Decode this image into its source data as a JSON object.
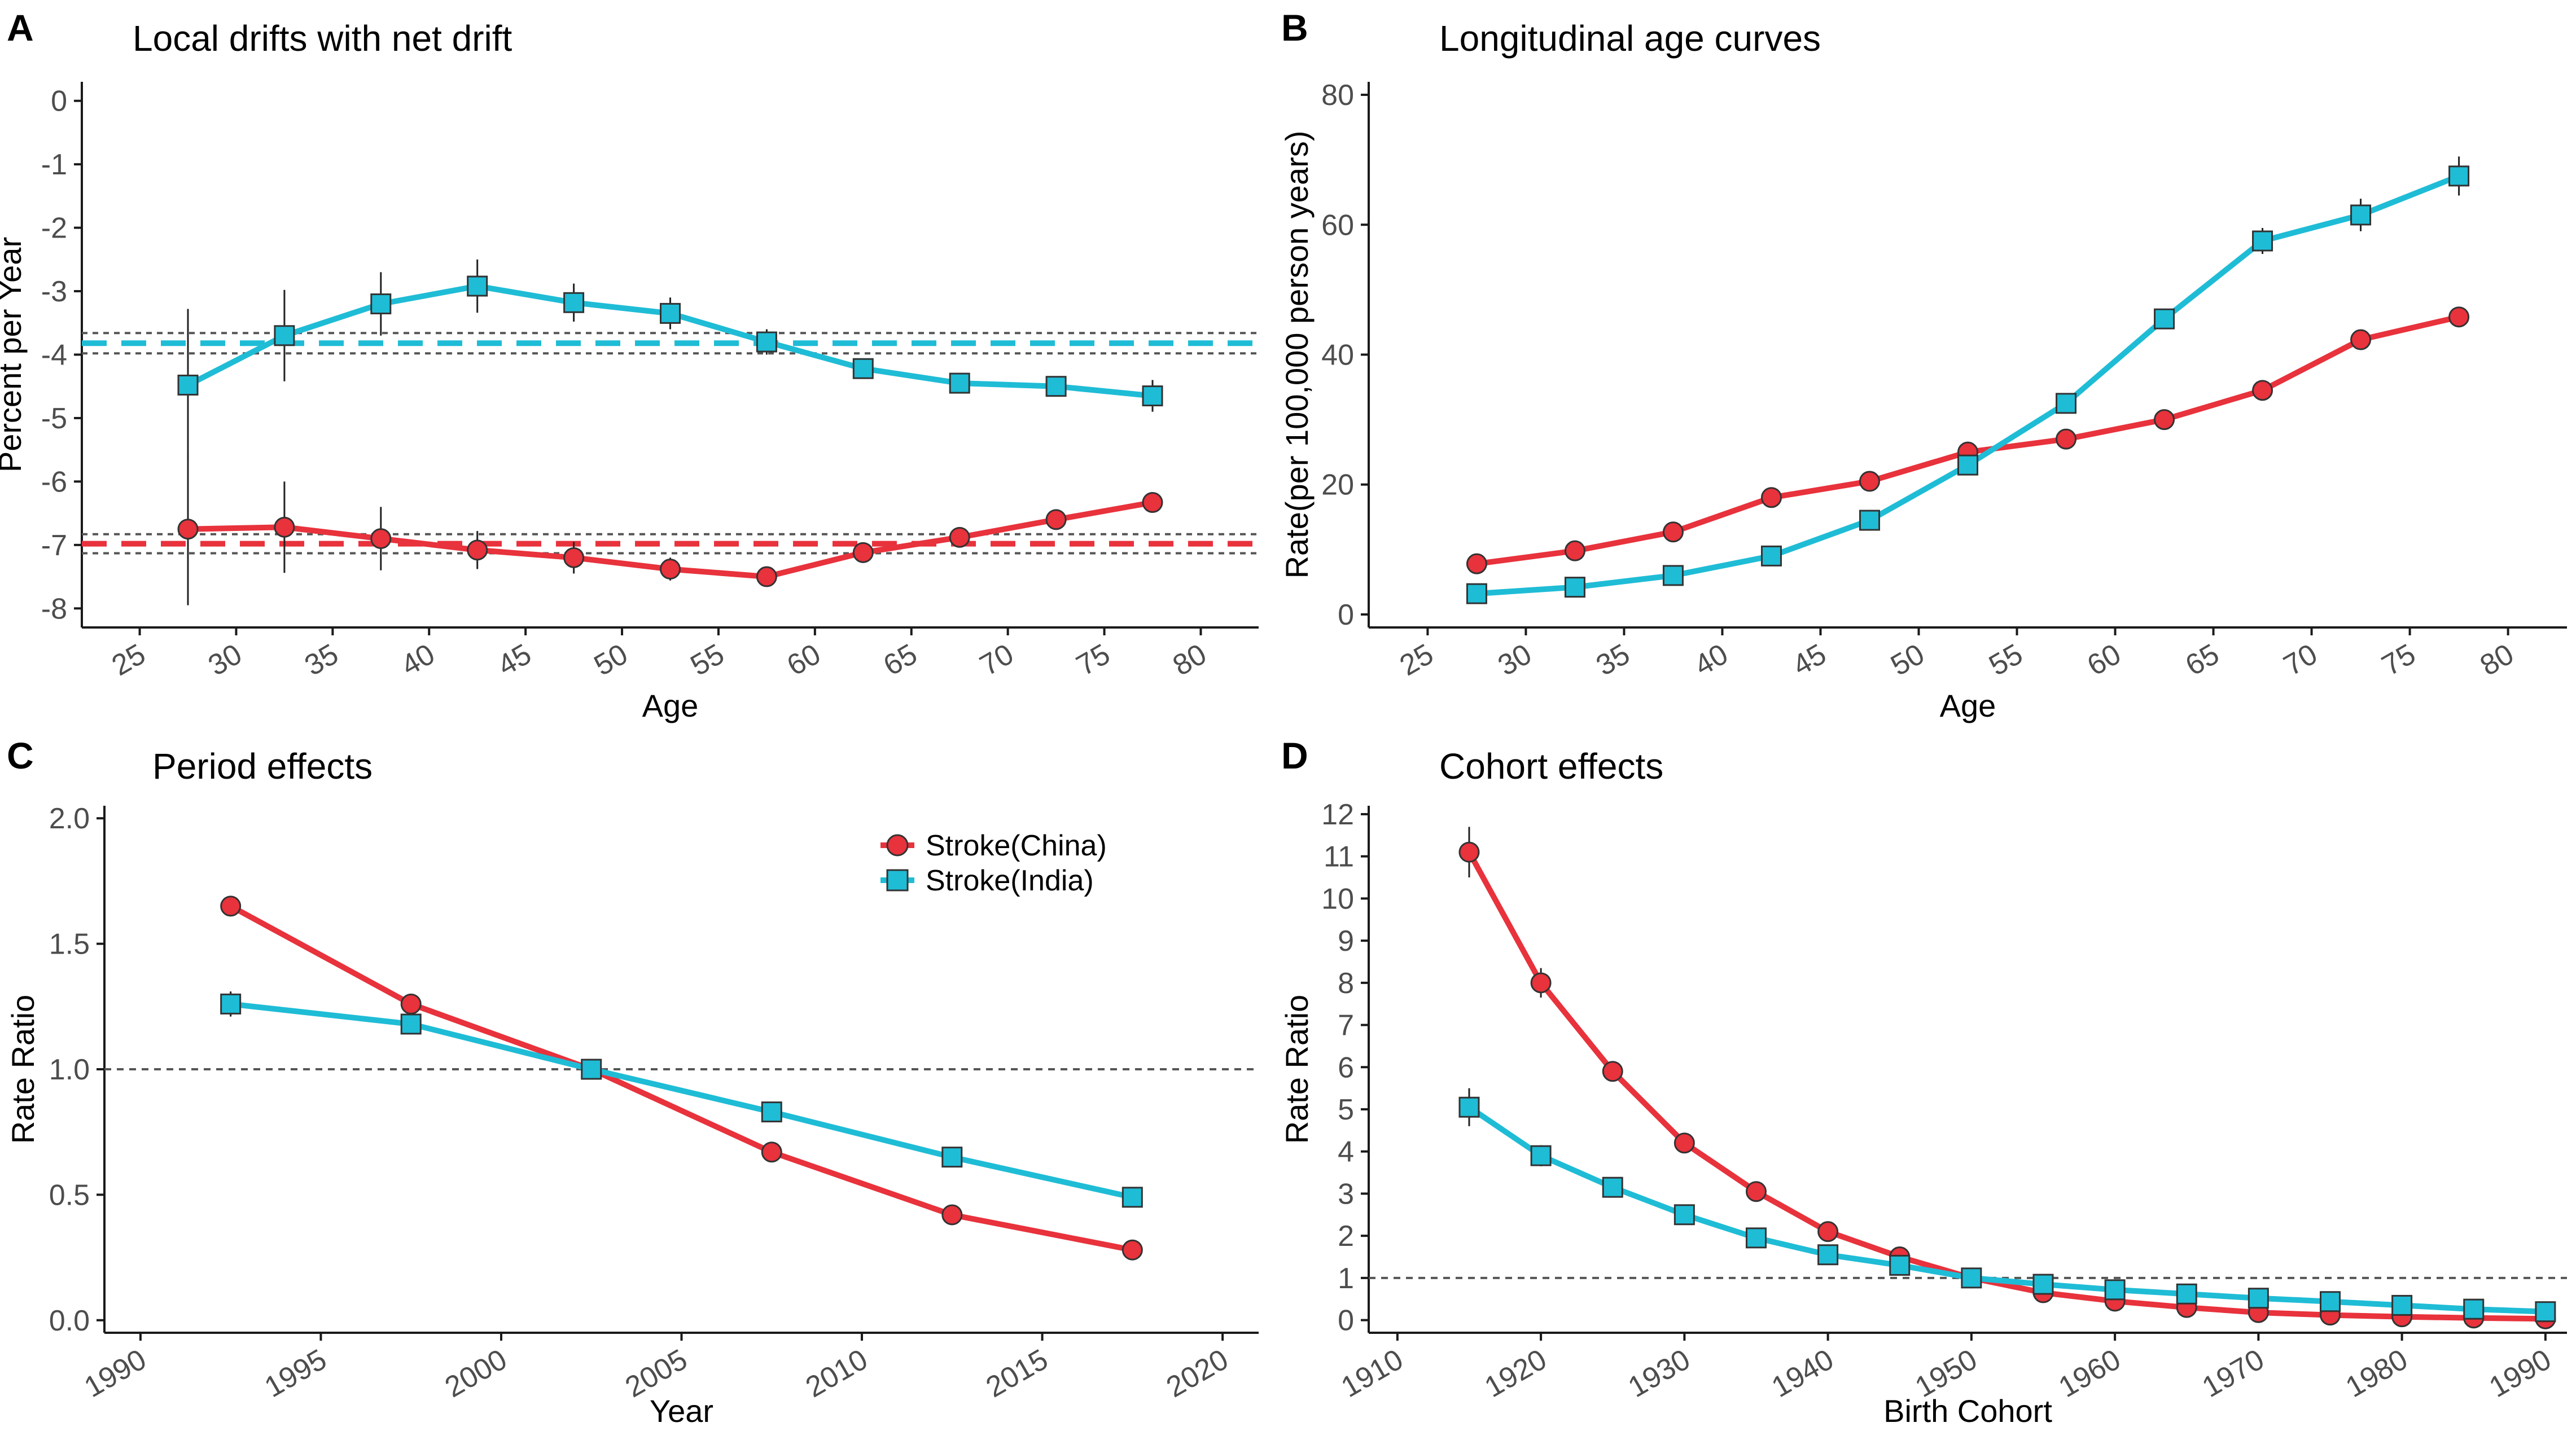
{
  "chart_data": [
    {
      "type": "line",
      "panel_label": "A",
      "title": "Local drifts with net drift",
      "xlabel": "Age",
      "ylabel": "Percent per Year",
      "xlim": [
        22,
        83
      ],
      "ylim": [
        -8.3,
        0.3
      ],
      "xticks": [
        25,
        30,
        35,
        40,
        45,
        50,
        55,
        60,
        65,
        70,
        75,
        80
      ],
      "yticks": [
        0,
        -1,
        -2,
        -3,
        -4,
        -5,
        -6,
        -7,
        -8
      ],
      "x": [
        27.5,
        32.5,
        37.5,
        42.5,
        47.5,
        52.5,
        57.5,
        62.5,
        67.5,
        72.5,
        77.5
      ],
      "series": [
        {
          "name": "Stroke(China)",
          "color": "#e8323c",
          "marker": "circle",
          "values": [
            -6.75,
            -6.72,
            -6.9,
            -7.08,
            -7.2,
            -7.38,
            -7.5,
            -7.12,
            -6.88,
            -6.6,
            -6.33
          ],
          "error": [
            1.2,
            0.72,
            0.5,
            0.3,
            0.25,
            0.18,
            0.1,
            0.12,
            0.1,
            0.1,
            0.08
          ],
          "net_drift": -6.98,
          "net_drift_ci": [
            -7.13,
            -6.83
          ]
        },
        {
          "name": "Stroke(India)",
          "color": "#1fbcd6",
          "marker": "square",
          "values": [
            -4.48,
            -3.7,
            -3.2,
            -2.92,
            -3.18,
            -3.35,
            -3.8,
            -4.22,
            -4.45,
            -4.5,
            -4.65
          ],
          "error": [
            1.2,
            0.72,
            0.5,
            0.42,
            0.3,
            0.25,
            0.2,
            0.15,
            0.12,
            0.15,
            0.25
          ],
          "net_drift": -3.82,
          "net_drift_ci": [
            -3.98,
            -3.66
          ]
        }
      ]
    },
    {
      "type": "line",
      "panel_label": "B",
      "title": "Longitudinal age curves",
      "xlabel": "Age",
      "ylabel": "Rate(per 100,000 person years)",
      "xlim": [
        22,
        83
      ],
      "ylim": [
        -2,
        82
      ],
      "xticks": [
        25,
        30,
        35,
        40,
        45,
        50,
        55,
        60,
        65,
        70,
        75,
        80
      ],
      "yticks": [
        0,
        20,
        40,
        60,
        80
      ],
      "x": [
        27.5,
        32.5,
        37.5,
        42.5,
        47.5,
        52.5,
        57.5,
        62.5,
        67.5,
        72.5,
        77.5
      ],
      "series": [
        {
          "name": "Stroke(China)",
          "color": "#e8323c",
          "marker": "circle",
          "values": [
            7.8,
            9.8,
            12.7,
            18.0,
            20.5,
            25.0,
            27.0,
            30.0,
            34.5,
            42.3,
            45.8
          ],
          "error": [
            0.3,
            0.3,
            0.4,
            0.5,
            0.5,
            0.5,
            0.5,
            0.6,
            0.7,
            1.2,
            1.2
          ]
        },
        {
          "name": "Stroke(India)",
          "color": "#1fbcd6",
          "marker": "square",
          "values": [
            3.2,
            4.2,
            6.0,
            9.0,
            14.5,
            23.0,
            32.5,
            45.5,
            57.5,
            61.5,
            67.5
          ],
          "error": [
            0.3,
            0.3,
            0.4,
            0.5,
            0.6,
            0.8,
            1.0,
            1.3,
            2.0,
            2.5,
            3.0
          ]
        }
      ]
    },
    {
      "type": "line",
      "panel_label": "C",
      "title": "Period effects",
      "xlabel": "Year",
      "ylabel": "Rate Ratio",
      "xlim": [
        1989,
        2021
      ],
      "ylim": [
        -0.05,
        2.05
      ],
      "xticks": [
        1990,
        1995,
        2000,
        2005,
        2010,
        2015,
        2020
      ],
      "yticks": [
        0.0,
        0.5,
        1.0,
        1.5,
        2.0
      ],
      "ytick_labels": [
        "0.0",
        "0.5",
        "1.0",
        "1.5",
        "2.0"
      ],
      "reference_line": 1.0,
      "x": [
        1992.5,
        1997.5,
        2002.5,
        2007.5,
        2012.5,
        2017.5
      ],
      "legend": {
        "position": "top-right",
        "entries": [
          "Stroke(China)",
          "Stroke(India)"
        ]
      },
      "series": [
        {
          "name": "Stroke(China)",
          "color": "#e8323c",
          "marker": "circle",
          "values": [
            1.65,
            1.26,
            1.0,
            0.67,
            0.42,
            0.28
          ],
          "error": [
            0.04,
            0.02,
            0.0,
            0.01,
            0.01,
            0.01
          ]
        },
        {
          "name": "Stroke(India)",
          "color": "#1fbcd6",
          "marker": "square",
          "values": [
            1.26,
            1.18,
            1.0,
            0.83,
            0.65,
            0.49
          ],
          "error": [
            0.05,
            0.02,
            0.0,
            0.02,
            0.02,
            0.02
          ]
        }
      ]
    },
    {
      "type": "line",
      "panel_label": "D",
      "title": "Cohort effects",
      "xlabel": "Birth Cohort",
      "ylabel": "Rate Ratio",
      "xlim": [
        1908,
        1991.5
      ],
      "ylim": [
        -0.3,
        12.2
      ],
      "xticks": [
        1910,
        1920,
        1930,
        1940,
        1950,
        1960,
        1970,
        1980,
        1990
      ],
      "yticks": [
        0,
        1,
        2,
        3,
        4,
        5,
        6,
        7,
        8,
        9,
        10,
        11,
        12
      ],
      "reference_line": 1.0,
      "x": [
        1915,
        1920,
        1925,
        1930,
        1935,
        1940,
        1945,
        1950,
        1955,
        1960,
        1965,
        1970,
        1975,
        1980,
        1985,
        1990
      ],
      "series": [
        {
          "name": "Stroke(China)",
          "color": "#e8323c",
          "marker": "circle",
          "values": [
            11.1,
            8.0,
            5.9,
            4.2,
            3.05,
            2.1,
            1.5,
            1.0,
            0.65,
            0.45,
            0.3,
            0.18,
            0.12,
            0.08,
            0.05,
            0.03
          ],
          "error": [
            0.6,
            0.35,
            0.15,
            0.1,
            0.08,
            0.06,
            0.04,
            0.0,
            0.02,
            0.02,
            0.02,
            0.02,
            0.02,
            0.02,
            0.02,
            0.02
          ]
        },
        {
          "name": "Stroke(India)",
          "color": "#1fbcd6",
          "marker": "square",
          "values": [
            5.05,
            3.9,
            3.15,
            2.5,
            1.95,
            1.55,
            1.3,
            1.0,
            0.85,
            0.72,
            0.62,
            0.52,
            0.44,
            0.35,
            0.26,
            0.2
          ],
          "error": [
            0.45,
            0.25,
            0.12,
            0.1,
            0.08,
            0.05,
            0.04,
            0.0,
            0.04,
            0.05,
            0.05,
            0.06,
            0.07,
            0.08,
            0.1,
            0.12
          ]
        }
      ]
    }
  ]
}
